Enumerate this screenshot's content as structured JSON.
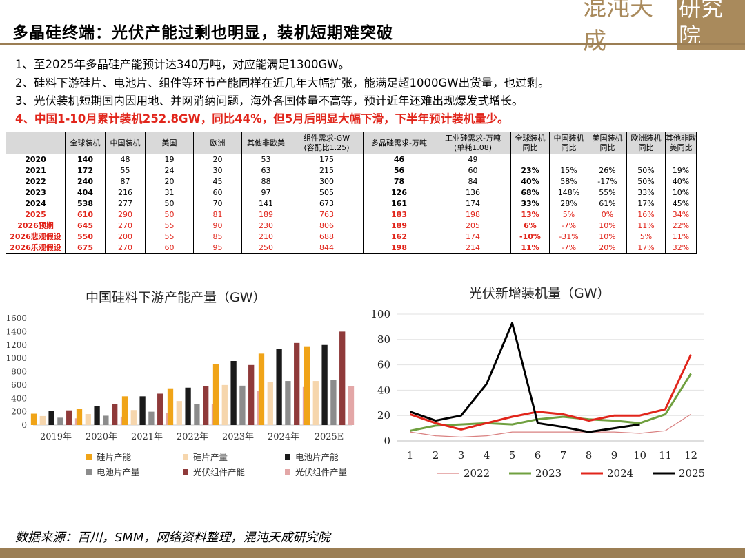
{
  "header": {
    "title": "多晶硅终端：光伏产能过剩也明显，装机短期难突破",
    "logo_text": "混沌天成",
    "logo_box_text": "研究院"
  },
  "points": [
    {
      "text": "1、至2025年多晶硅产能预计达340万吨，对应能满足1300GW。",
      "highlight": false
    },
    {
      "text": "2、硅料下游硅片、电池片、组件等环节产能同样在近几年大幅扩张，能满足超1000GW出货量，也过剩。",
      "highlight": false
    },
    {
      "text": "3、光伏装机短期国内因用地、并网消纳问题，海外各国体量不高等，预计近年还难出现爆发式增长。",
      "highlight": false
    },
    {
      "text": "4、中国1-10月累计装机252.8GW，同比44%，但5月后明显大幅下滑，下半年预计装机量少。",
      "highlight": true
    }
  ],
  "table": {
    "headers": [
      "",
      "全球装机",
      "中国装机",
      "美国",
      "欧洲",
      "其他非欧美",
      "组件需求-GW\n(容配比1.25)",
      "多晶硅需求-万吨",
      "工业硅需求-万吨\n(单耗1.08)",
      "全球装机\n同比",
      "中国装机\n同比",
      "美国装机\n同比",
      "欧洲装机\n同比",
      "其他非欧\n美同比"
    ],
    "rows": [
      {
        "cells": [
          "2020",
          "140",
          "48",
          "19",
          "20",
          "53",
          "175",
          "46",
          "49",
          "",
          "",
          "",
          "",
          ""
        ],
        "red": false
      },
      {
        "cells": [
          "2021",
          "172",
          "55",
          "24",
          "30",
          "63",
          "215",
          "56",
          "60",
          "23%",
          "15%",
          "26%",
          "50%",
          "19%"
        ],
        "red": false
      },
      {
        "cells": [
          "2022",
          "240",
          "87",
          "20",
          "45",
          "88",
          "300",
          "78",
          "84",
          "40%",
          "58%",
          "-17%",
          "50%",
          "40%"
        ],
        "red": false
      },
      {
        "cells": [
          "2023",
          "404",
          "216",
          "31",
          "60",
          "97",
          "505",
          "126",
          "136",
          "68%",
          "148%",
          "55%",
          "33%",
          "10%"
        ],
        "red": false
      },
      {
        "cells": [
          "2024",
          "538",
          "277",
          "50",
          "70",
          "141",
          "673",
          "161",
          "174",
          "33%",
          "28%",
          "61%",
          "17%",
          "45%"
        ],
        "red": false
      },
      {
        "cells": [
          "2025",
          "610",
          "290",
          "50",
          "81",
          "189",
          "763",
          "183",
          "198",
          "13%",
          "5%",
          "0%",
          "16%",
          "34%"
        ],
        "red": true
      },
      {
        "cells": [
          "2026预期",
          "645",
          "270",
          "55",
          "90",
          "230",
          "806",
          "189",
          "205",
          "6%",
          "-7%",
          "10%",
          "11%",
          "22%"
        ],
        "red": true
      },
      {
        "cells": [
          "2026悲观假设",
          "550",
          "200",
          "55",
          "85",
          "210",
          "688",
          "162",
          "174",
          "-10%",
          "-31%",
          "10%",
          "5%",
          "11%"
        ],
        "red": true
      },
      {
        "cells": [
          "2026乐观假设",
          "675",
          "270",
          "60",
          "95",
          "250",
          "844",
          "198",
          "214",
          "11%",
          "-7%",
          "20%",
          "17%",
          "32%"
        ],
        "red": true
      }
    ]
  },
  "footer": {
    "source": "数据来源：百川，SMM，网络资料整理，混沌天成研究院"
  },
  "chart_data": [
    {
      "type": "bar",
      "title": "中国硅料下游产能产量（GW）",
      "categories": [
        "2019年",
        "2020年",
        "2021年",
        "2022年",
        "2023年",
        "2024年",
        "2025E"
      ],
      "ylim": [
        0,
        1600
      ],
      "yticks": [
        0,
        200,
        400,
        600,
        800,
        1000,
        1200,
        1400,
        1600
      ],
      "grid": false,
      "legend_position": "bottom",
      "series": [
        {
          "name": "硅片产能",
          "color": "#f0a418",
          "values": [
            170,
            240,
            430,
            550,
            910,
            1070,
            1180
          ]
        },
        {
          "name": "硅片产量",
          "color": "#f6d6ad",
          "values": [
            135,
            165,
            225,
            360,
            600,
            650,
            660
          ]
        },
        {
          "name": "电池片产能",
          "color": "#1a1a1a",
          "values": [
            210,
            285,
            430,
            560,
            960,
            1140,
            1200
          ]
        },
        {
          "name": "电池片产量",
          "color": "#8c8c8c",
          "values": [
            110,
            140,
            200,
            320,
            590,
            660,
            680
          ]
        },
        {
          "name": "光伏组件产能",
          "color": "#8f3a3a",
          "values": [
            220,
            320,
            470,
            580,
            900,
            1230,
            1400
          ]
        },
        {
          "name": "光伏组件产量",
          "color": "#e3a7a7",
          "values": [
            100,
            125,
            180,
            310,
            510,
            570,
            580
          ]
        }
      ]
    },
    {
      "type": "line",
      "title": "光伏新增装机量（GW）",
      "x": [
        1,
        2,
        3,
        4,
        5,
        6,
        7,
        8,
        9,
        10,
        11,
        12
      ],
      "ylim": [
        0,
        100
      ],
      "yticks": [
        0,
        20,
        40,
        60,
        80,
        100
      ],
      "grid": true,
      "legend_position": "bottom",
      "series": [
        {
          "name": "2022",
          "color": "#d98080",
          "width": 1.2,
          "values": [
            7,
            4,
            3,
            4,
            7,
            7,
            7,
            7,
            7,
            6,
            8,
            21
          ]
        },
        {
          "name": "2023",
          "color": "#70a040",
          "width": 3,
          "values": [
            8,
            12,
            13,
            14,
            13,
            17,
            19,
            17,
            16,
            14,
            21,
            53
          ]
        },
        {
          "name": "2024",
          "color": "#e1251b",
          "width": 3,
          "values": [
            21,
            14,
            9,
            14,
            19,
            23,
            21,
            16,
            20,
            20,
            25,
            68
          ]
        },
        {
          "name": "2025",
          "color": "#000000",
          "width": 3,
          "values": [
            23,
            16,
            20,
            45,
            93,
            14,
            11,
            7,
            10,
            13,
            null,
            null
          ]
        }
      ]
    }
  ]
}
